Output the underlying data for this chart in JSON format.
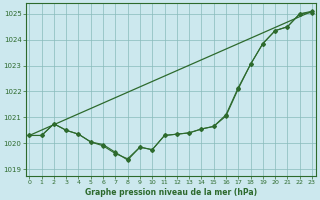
{
  "xlabel": "Graphe pression niveau de la mer (hPa)",
  "background_color": "#cce8ee",
  "grid_color": "#88bbbb",
  "line_color": "#2d6a2d",
  "ylim": [
    1018.75,
    1025.4
  ],
  "xlim": [
    -0.3,
    23.3
  ],
  "yticks": [
    1019,
    1020,
    1021,
    1022,
    1023,
    1024,
    1025
  ],
  "xticks": [
    0,
    1,
    2,
    3,
    4,
    5,
    6,
    7,
    8,
    9,
    10,
    11,
    12,
    13,
    14,
    15,
    16,
    17,
    18,
    19,
    20,
    21,
    22,
    23
  ],
  "line_straight": {
    "x": [
      0,
      23
    ],
    "y": [
      1020.3,
      1025.1
    ]
  },
  "line1": {
    "x": [
      0,
      1,
      2,
      3,
      4,
      5,
      6,
      7,
      8,
      9,
      10,
      11,
      12,
      13,
      14,
      15,
      16,
      17,
      18,
      19,
      20,
      21,
      22,
      23
    ],
    "y": [
      1020.3,
      1020.3,
      1020.75,
      1020.5,
      1020.35,
      1020.05,
      1019.95,
      1019.65,
      1019.35,
      1019.85,
      1019.75,
      1020.3,
      1020.35,
      1020.4,
      1020.55,
      1020.65,
      1021.1,
      1022.15,
      1023.05,
      1023.85,
      1024.35,
      1024.5,
      1025.0,
      1025.05
    ]
  },
  "line2": {
    "x": [
      0,
      1,
      2,
      3,
      4,
      5,
      6,
      7,
      8,
      9,
      10,
      11,
      12,
      13,
      14,
      15,
      16,
      17,
      18,
      19,
      20,
      21,
      22,
      23
    ],
    "y": [
      1020.3,
      1020.3,
      1020.75,
      1020.5,
      1020.35,
      1020.05,
      1019.9,
      1019.6,
      1019.4,
      1019.85,
      1019.75,
      1020.3,
      1020.35,
      1020.4,
      1020.55,
      1020.65,
      1021.05,
      1022.1,
      1023.05,
      1023.85,
      1024.35,
      1024.5,
      1025.0,
      1025.1
    ]
  }
}
